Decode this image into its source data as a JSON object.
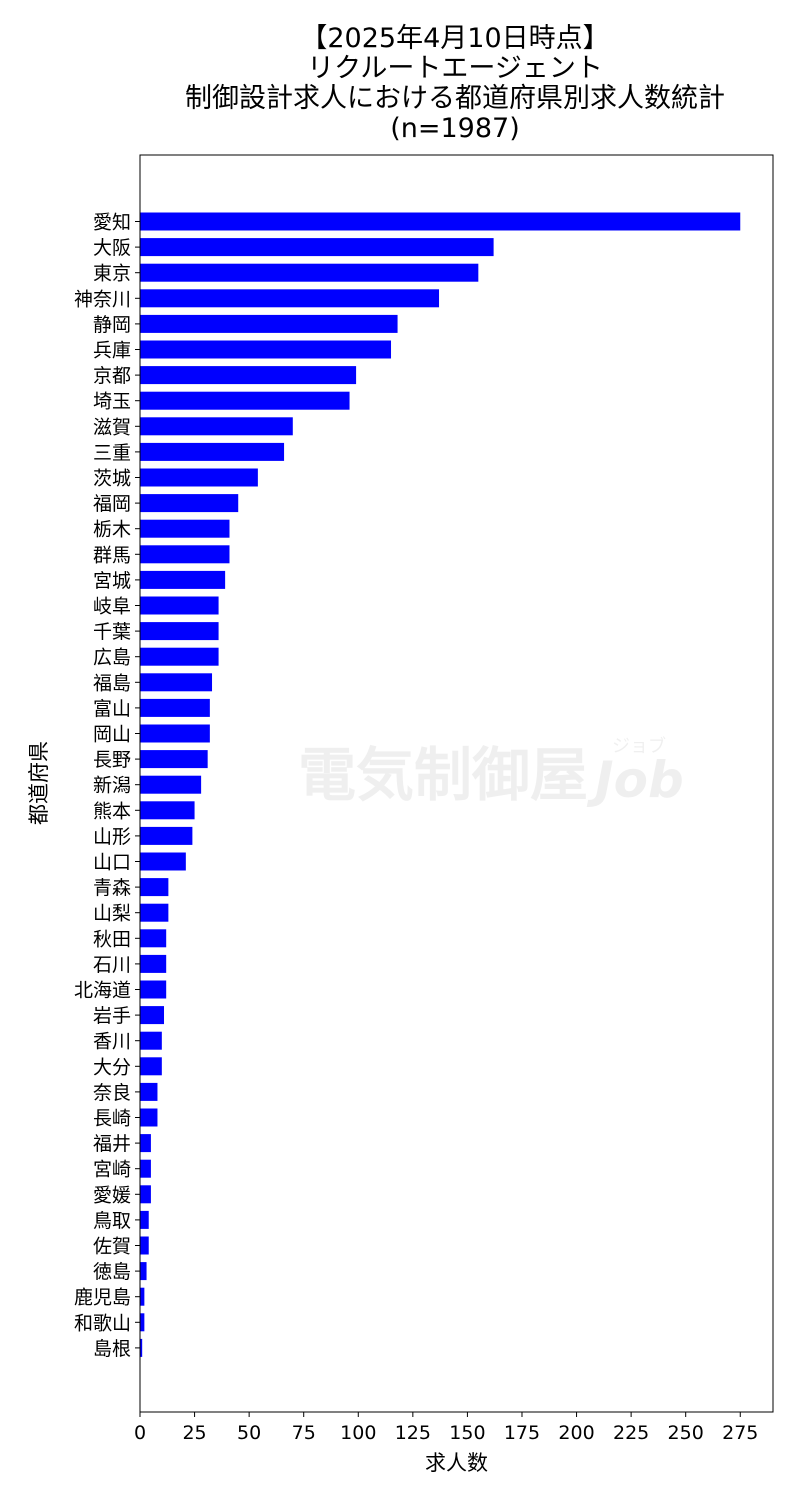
{
  "chart_data": {
    "type": "bar",
    "orientation": "horizontal",
    "title_lines": [
      "【2025年4月10日時点】",
      "リクルートエージェント",
      "制御設計求人における都道府県別求人数統計",
      "(n=1987)"
    ],
    "xlabel": "求人数",
    "ylabel": "都道府県",
    "xlim": [
      0,
      290
    ],
    "xticks": [
      0,
      25,
      50,
      75,
      100,
      125,
      150,
      175,
      200,
      225,
      250,
      275
    ],
    "grid": false,
    "bar_color": "#0000ff",
    "categories": [
      "愛知",
      "大阪",
      "東京",
      "神奈川",
      "静岡",
      "兵庫",
      "京都",
      "埼玉",
      "滋賀",
      "三重",
      "茨城",
      "福岡",
      "栃木",
      "群馬",
      "宮城",
      "岐阜",
      "千葉",
      "広島",
      "福島",
      "富山",
      "岡山",
      "長野",
      "新潟",
      "熊本",
      "山形",
      "山口",
      "青森",
      "山梨",
      "秋田",
      "石川",
      "北海道",
      "岩手",
      "香川",
      "大分",
      "奈良",
      "長崎",
      "福井",
      "宮崎",
      "愛媛",
      "鳥取",
      "佐賀",
      "徳島",
      "鹿児島",
      "和歌山",
      "島根"
    ],
    "values": [
      275,
      162,
      155,
      137,
      118,
      115,
      99,
      96,
      70,
      66,
      54,
      45,
      41,
      41,
      39,
      36,
      36,
      36,
      33,
      32,
      32,
      31,
      28,
      25,
      24,
      21,
      13,
      13,
      12,
      12,
      12,
      11,
      10,
      10,
      8,
      8,
      5,
      5,
      5,
      4,
      4,
      3,
      2,
      2,
      1
    ]
  },
  "watermark": {
    "text": "電気制御屋",
    "suffix": "Job",
    "ruby": "ジョブ"
  }
}
